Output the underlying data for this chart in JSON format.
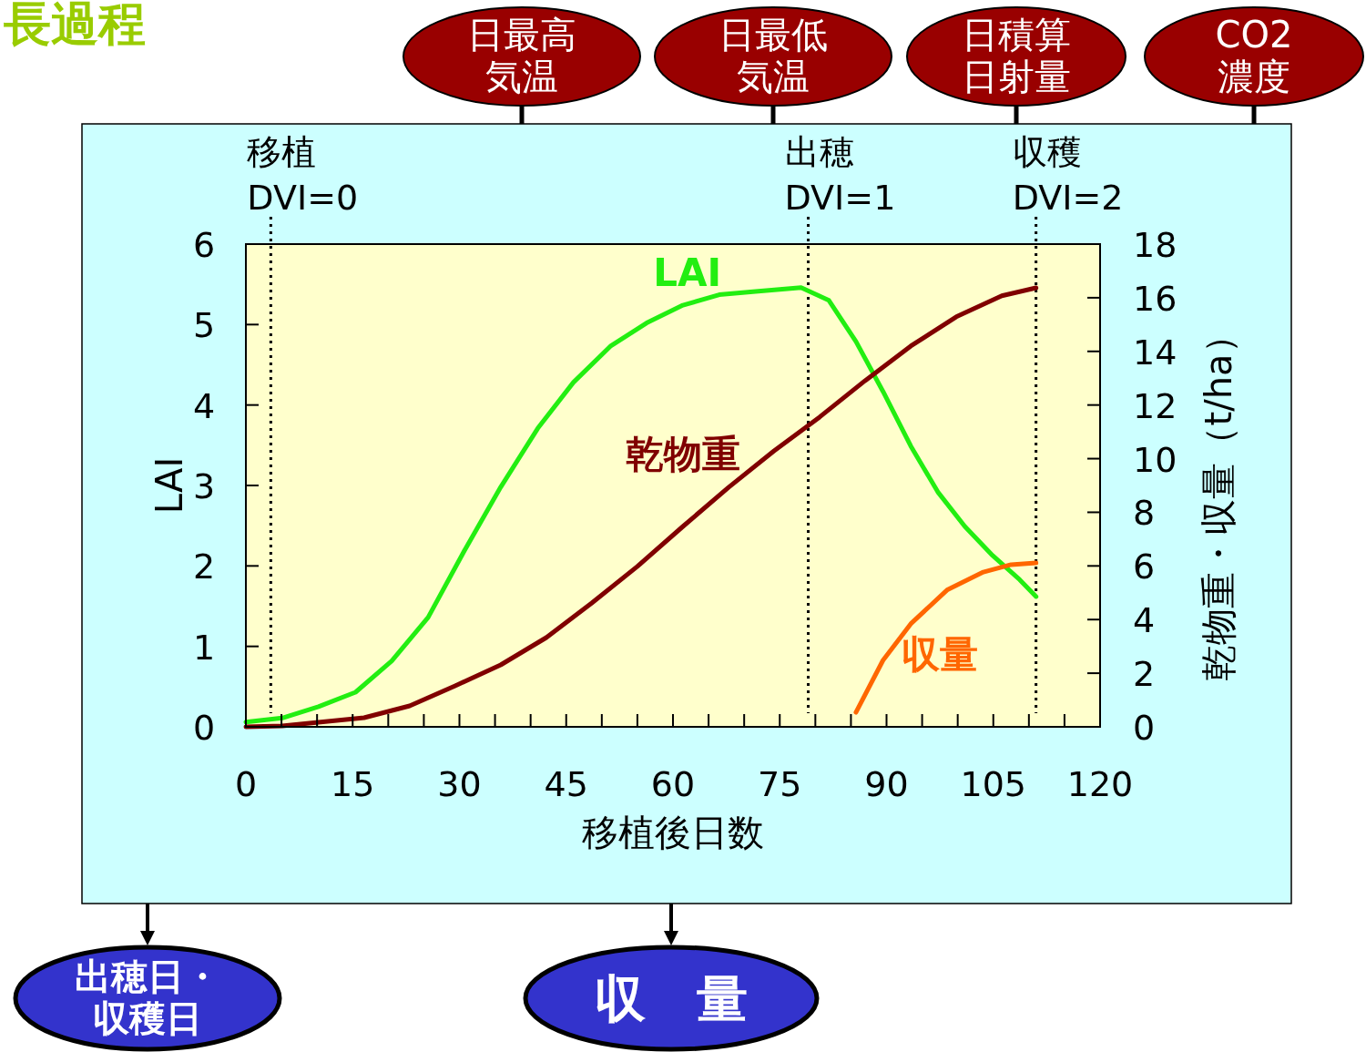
{
  "chart_data": {
    "type": "line",
    "title": "長過程",
    "xlabel": "移植後日数",
    "ylabel": "LAI",
    "y2label": "乾物重・収量（t/ha）",
    "xlim": [
      0,
      120
    ],
    "xticks": [
      0,
      {
        "value": 5,
        "label": null
      },
      {
        "value": 10,
        "label": null
      },
      15,
      {
        "value": 20,
        "label": null
      },
      {
        "value": 25,
        "label": null
      },
      30,
      {
        "value": 35,
        "label": null
      },
      {
        "value": 40,
        "label": null
      },
      45,
      {
        "value": 50,
        "label": null
      },
      {
        "value": 55,
        "label": null
      },
      60,
      {
        "value": 65,
        "label": null
      },
      {
        "value": 70,
        "label": null
      },
      75,
      {
        "value": 80,
        "label": null
      },
      {
        "value": 85,
        "label": null
      },
      90,
      {
        "value": 95,
        "label": null
      },
      {
        "value": 100,
        "label": null
      },
      105,
      {
        "value": 110,
        "label": null
      },
      {
        "value": 115,
        "label": null
      },
      120
    ],
    "ylim": [
      0,
      6
    ],
    "yticks": [
      0,
      1,
      2,
      3,
      4,
      5,
      6
    ],
    "y2lim": [
      0,
      18
    ],
    "y2ticks": [
      0,
      2,
      4,
      6,
      8,
      10,
      12,
      14,
      16,
      18
    ],
    "grid": false,
    "series": [
      {
        "name": "LAI",
        "color": "#22ee11",
        "x": [
          0,
          5.1,
          10.2,
          15.4,
          20.5,
          25.6,
          30.7,
          35.8,
          41,
          46,
          51.2,
          56.3,
          61.4,
          66.5,
          71.6,
          78,
          81.9,
          85.7,
          89.5,
          93.4,
          97.2,
          101,
          104.9,
          108.7,
          111
        ],
        "values": [
          0.06,
          0.11,
          0.25,
          0.43,
          0.82,
          1.36,
          2.19,
          2.98,
          3.71,
          4.28,
          4.73,
          5.02,
          5.24,
          5.37,
          5.41,
          5.46,
          5.3,
          4.79,
          4.17,
          3.49,
          2.92,
          2.49,
          2.13,
          1.83,
          1.62
        ]
      },
      {
        "name": "乾物重",
        "color": "#800000",
        "axis": "y2",
        "x": [
          0,
          5.1,
          10.2,
          16.6,
          23,
          29.4,
          35.8,
          42.2,
          48.6,
          55,
          61.4,
          67.8,
          74.2,
          80.6,
          87,
          93.4,
          99.8,
          106.2,
          111
        ],
        "values": [
          0,
          0.03,
          0.17,
          0.34,
          0.78,
          1.53,
          2.31,
          3.33,
          4.62,
          5.98,
          7.47,
          8.93,
          10.29,
          11.55,
          12.91,
          14.2,
          15.29,
          16.07,
          16.37
        ]
      },
      {
        "name": "収量",
        "color": "#ff6600",
        "axis": "y2",
        "x": [
          85.7,
          89.5,
          93.4,
          98.5,
          103.6,
          107.5,
          111
        ],
        "values": [
          0.54,
          2.48,
          3.84,
          5.1,
          5.77,
          6.05,
          6.11
        ]
      }
    ],
    "ref_lines": [
      {
        "axis": "x",
        "value": 3.5,
        "line_style": "dotted",
        "color": "#000000"
      },
      {
        "axis": "x",
        "value": 79,
        "line_style": "dotted",
        "color": "#000000"
      },
      {
        "axis": "x",
        "value": 111,
        "line_style": "dotted",
        "color": "#000000"
      }
    ],
    "annotations": [
      "日最高気温",
      "日最低気温",
      "日積算日射量",
      "CO2濃度",
      "出穂日・収穫日",
      "収　量",
      "移植",
      "DVI=0",
      "出穂",
      "DVI=1",
      "収穫",
      "DVI=2"
    ]
  }
}
